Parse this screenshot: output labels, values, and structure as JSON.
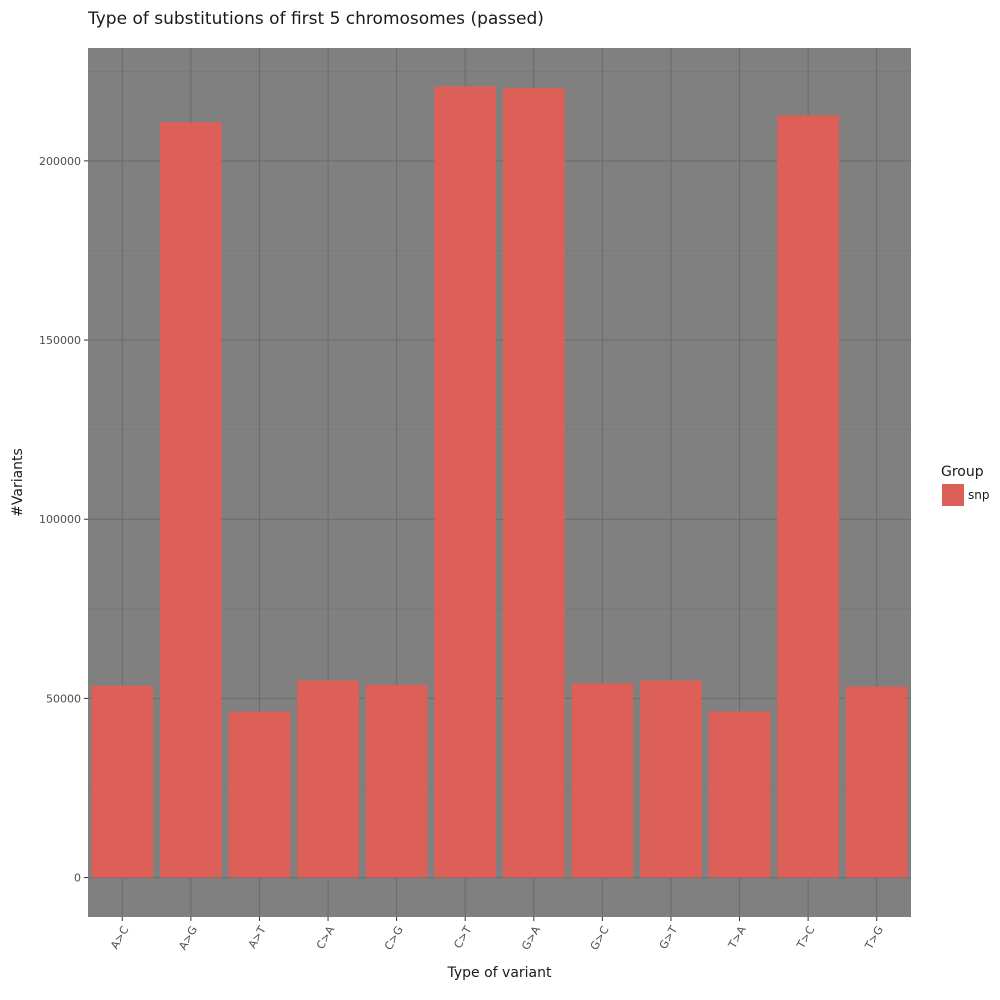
{
  "chart_data": {
    "type": "bar",
    "title": "Type of substitutions of first 5 chromosomes (passed)",
    "xlabel": "Type of variant",
    "ylabel": "#Variants",
    "categories": [
      "A>C",
      "A>G",
      "A>T",
      "C>A",
      "C>G",
      "C>T",
      "G>A",
      "G>C",
      "G>T",
      "T>A",
      "T>C",
      "T>G"
    ],
    "series": [
      {
        "name": "snp",
        "values": [
          53500,
          210800,
          46300,
          55000,
          53800,
          220800,
          220300,
          54200,
          55000,
          46400,
          212700,
          53300
        ]
      }
    ],
    "ylim": [
      -11000,
      231500
    ],
    "yticks": [
      0,
      50000,
      100000,
      150000,
      200000
    ],
    "ytick_labels": [
      "0",
      "50000",
      "100000",
      "150000",
      "200000"
    ],
    "grid": true,
    "legend": {
      "title": "Group",
      "placement": "right"
    },
    "colors": {
      "bar": "#dc6057",
      "panel": "#808080",
      "grid_major": "#6b6b6b",
      "grid_minor": "#767676",
      "background": "#ffffff"
    }
  }
}
